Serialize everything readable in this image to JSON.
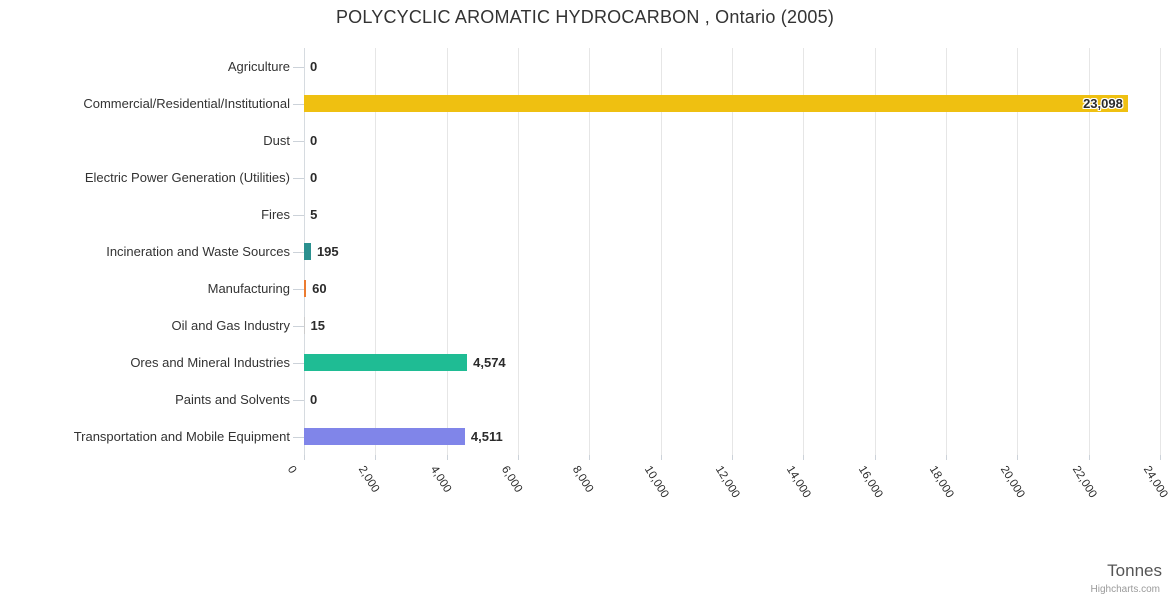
{
  "chart": {
    "credits": "Highcharts.com"
  },
  "chart_data": {
    "type": "bar",
    "orientation": "horizontal",
    "title": "POLYCYCLIC AROMATIC HYDROCARBON , Ontario (2005)",
    "categories": [
      "Agriculture",
      "Commercial/Residential/Institutional",
      "Dust",
      "Electric Power Generation (Utilities)",
      "Fires",
      "Incineration and Waste Sources",
      "Manufacturing",
      "Oil and Gas Industry",
      "Ores and Mineral Industries",
      "Paints and Solvents",
      "Transportation and Mobile Equipment"
    ],
    "values": [
      0,
      23098,
      0,
      0,
      5,
      195,
      60,
      15,
      4574,
      0,
      4511
    ],
    "value_labels": [
      "0",
      "23,098",
      "0",
      "0",
      "5",
      "195",
      "60",
      "15",
      "4,574",
      "0",
      "4,511"
    ],
    "bar_colors": [
      null,
      "#efc011",
      null,
      null,
      null,
      "#2b908f",
      "#ec7c31",
      null,
      "#1fbc94",
      null,
      "#8085e9"
    ],
    "xlabel": "Tonnes",
    "xlim": [
      0,
      24000
    ],
    "x_tick_interval": 2000,
    "x_tick_labels": [
      "0",
      "2,000",
      "4,000",
      "6,000",
      "8,000",
      "10,000",
      "12,000",
      "14,000",
      "16,000",
      "18,000",
      "20,000",
      "22,000",
      "24,000"
    ],
    "grid": true,
    "legend": false,
    "colors": {
      "grid": "#e6e6e6",
      "axis_line": "#d6dbe0",
      "tick": "#ccd2d9",
      "category_text": "#333333",
      "value_text": "#2b2b2b",
      "title_text": "#333333",
      "axis_title_text": "#555555",
      "credit_text": "#9a9a9a"
    }
  }
}
